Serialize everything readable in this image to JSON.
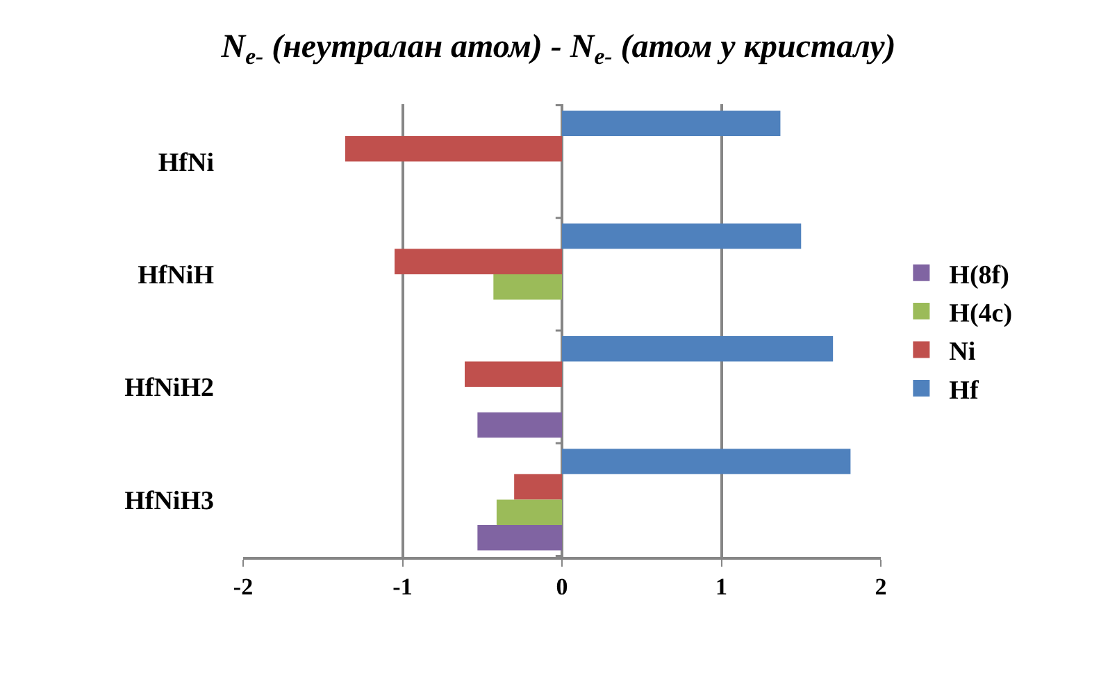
{
  "chart_data": {
    "type": "bar",
    "orientation": "horizontal",
    "title": "N$_{e-}$ (неутралан атом) - N$_{e-}$ (атом у кристалу)",
    "categories": [
      "HfNi",
      "HfNiH",
      "HfNiH2",
      "HfNiH3"
    ],
    "series": [
      {
        "name": "Hf",
        "color": "#4f81bd",
        "values": [
          1.37,
          1.5,
          1.7,
          1.81
        ]
      },
      {
        "name": "Ni",
        "color": "#c0504d",
        "values": [
          -1.36,
          -1.05,
          -0.61,
          -0.3
        ]
      },
      {
        "name": "H(4c)",
        "color": "#9bbb59",
        "values": [
          null,
          -0.43,
          null,
          -0.41
        ]
      },
      {
        "name": "H(8f)",
        "color": "#8064a2",
        "values": [
          null,
          null,
          -0.53,
          -0.53
        ]
      }
    ],
    "xlim": [
      -2,
      2
    ],
    "xticks": [
      -2,
      -1,
      0,
      1,
      2
    ],
    "grid": "x",
    "legend": "right"
  }
}
